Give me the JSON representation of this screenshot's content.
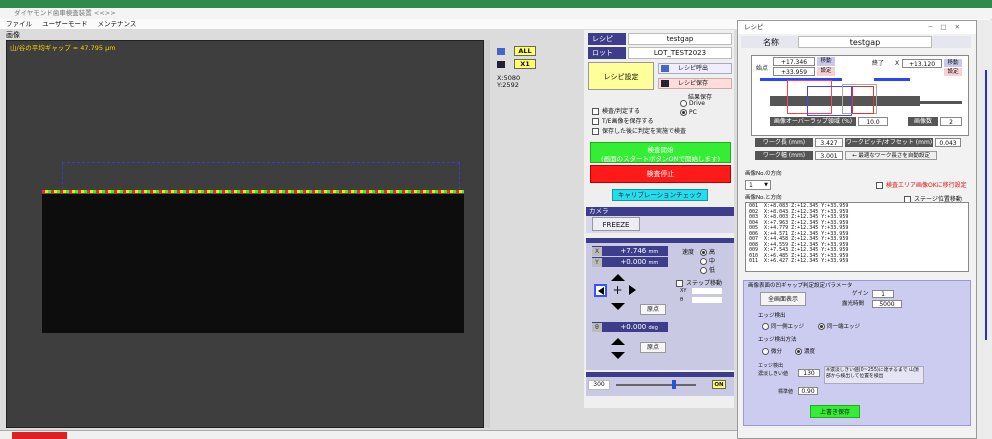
{
  "window": {
    "title": "ダイヤモンド歯車検査装置 <<>>",
    "menu": [
      "ファイル",
      "ユーザーモード",
      "メンテナンス"
    ]
  },
  "image_panel": {
    "label": "画像",
    "gap_caption": "山/谷の平均ギャップ = 47.795 μm",
    "all_btn": "ALL",
    "x1_btn": "X1",
    "coord_x": "X:5080",
    "coord_y": "Y:2592"
  },
  "recipe": {
    "recipe_label": "レシピ",
    "recipe_value": "testgap",
    "lot_label": "ロット",
    "lot_value": "LOT_TEST2023",
    "settings_btn": "レシピ設定",
    "load_btn": "レシピ呼出",
    "save_btn": "レシピ保存",
    "save_result_label": "結果保存",
    "drive_btn": "Drive",
    "pc_btn": "PC",
    "check1": "検査/判定する",
    "check2": "T/E画像を保存する",
    "check3": "保存した後に判定を実施で検査",
    "start_btn_line1": "検査開始",
    "start_btn_line2": "(画面のスタートボタンONで開始します)",
    "stop_btn": "検査停止",
    "calib_btn": "キャリブレーションチェック"
  },
  "camera": {
    "label": "カメラ",
    "freeze_btn": "FREEZE"
  },
  "stage": {
    "x_label": "X",
    "x_value": "+7.746",
    "y_label": "Y",
    "y_value": "+0.000",
    "unit": "mm",
    "speed_label": "速度",
    "speed_high": "高",
    "speed_mid": "中",
    "speed_low": "低",
    "step_label": "ステップ移動",
    "xy_label": "XY",
    "z_label": "θ",
    "origin_btn": "原点",
    "theta_label": "θ",
    "theta_value": "+0.000",
    "theta_unit": "deg",
    "origin2_btn": "原点"
  },
  "light": {
    "label": "照明",
    "value": "300",
    "on_btn": "ON",
    "level": 0.72
  },
  "dialog": {
    "title": "レシピ",
    "name_label": "名称",
    "name_value": "testgap",
    "left_label": "始点",
    "left_x": "+17.346",
    "left_y": "+33.959",
    "left_move": "移動",
    "left_set": "設定",
    "right_label": "終了",
    "right_x_label": "X",
    "right_x": "+13.120",
    "right_move": "移動",
    "right_set": "設定",
    "overlap_label": "画像オーバーラップ領域 (%)",
    "overlap_value": "10.0",
    "count_label": "画像数",
    "count_value": "2",
    "work_label": "ワーク長 (mm)",
    "work_value": "3.427",
    "pitch_label": "ワークピッチ/オフセット (mm)",
    "pitch_value": "0.043",
    "width_label": "ワーク幅 (mm)",
    "width_value": "3.001",
    "autoset_btn": "← 最適なワーク長さを自動設定",
    "imgno_label": "画像No.の方向",
    "imgno_value": "1",
    "table_check": "検査エリア画像OKに移行設定",
    "stage_check": "ステージ位置移動",
    "list_label": "画像No.と方向",
    "list_rows": [
      "001  X:+8.083 Z:+12.345 Y:+33.959",
      "002  X:+8.043 Z:+12.345 Y:+33.959",
      "003  X:+8.003 Z:+12.345 Y:+33.959",
      "004  X:+7.963 Z:+12.345 Y:+33.959",
      "005  X:+4.779 Z:+12.345 Y:+33.959",
      "006  X:+4.571 Z:+12.345 Y:+33.959",
      "007  X:+4.458 Z:+12.345 Y:+33.959",
      "008  X:+4.559 Z:+12.345 Y:+33.959",
      "009  X:+7.543 Z:+12.345 Y:+33.959",
      "010  X:+6.485 Z:+12.345 Y:+33.959",
      "011  X:+6.427 Z:+12.345 Y:+33.959"
    ],
    "settings_title": "画像表面の凹ギャップ判定設定パラメータ",
    "full_view_btn": "全画面表示",
    "gain_label": "ゲイン",
    "gain_value": "1",
    "threshold_label": "露光時間",
    "threshold_value": "5000",
    "edge_detect_label": "エッジ検出",
    "edge_opt1": "同一側エッジ",
    "edge_opt2": "同一端エッジ",
    "edge_method_label": "エッジ検出方法",
    "edge_m1": "微分",
    "edge_m2": "濃度",
    "edge_thr_label": "エッジ検出",
    "edge_thr_sub": "濃淡しきい値",
    "edge_thr_value": "130",
    "edge_note": "※濃淡しきい値(0~255)に達するまで 山頂部から検出して位置を検出",
    "std_label": "標準値",
    "std_value": "0.90",
    "register_btn": "上書き保存"
  }
}
